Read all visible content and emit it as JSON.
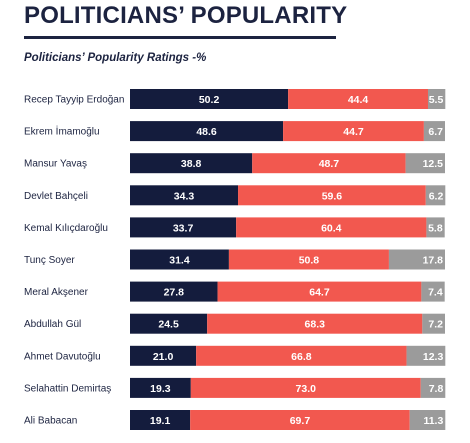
{
  "header": {
    "title": "POLITICIANS’ POPULARITY",
    "subtitle": "Politicians’ Popularity Ratings -%"
  },
  "colors": {
    "positive": "#141c3d",
    "negative": "#f2584f",
    "other": "#9b9b9b",
    "positive_text": "#ffffff",
    "negative_text": "#ffffff",
    "other_text": "#ffffff"
  },
  "chart_data": {
    "type": "bar",
    "orientation": "horizontal",
    "stacked": true,
    "title": "POLITICIANS’ POPULARITY",
    "subtitle": "Politicians’ Popularity Ratings -%",
    "xlim": [
      0,
      100
    ],
    "categories": [
      "Recep Tayyip Erdoğan",
      "Ekrem İmamoğlu",
      "Mansur Yavaş",
      "Devlet Bahçeli",
      "Kemal Kılıçdaroğlu",
      "Tunç Soyer",
      "Meral Akşener",
      "Abdullah Gül",
      "Ahmet Davutoğlu",
      "Selahattin Demirtaş",
      "Ali Babacan"
    ],
    "series": [
      {
        "values": [
          50.2,
          48.6,
          38.8,
          34.3,
          33.7,
          31.4,
          27.8,
          24.5,
          21.0,
          19.3,
          19.1
        ]
      },
      {
        "values": [
          44.4,
          44.7,
          48.7,
          59.6,
          60.4,
          50.8,
          64.7,
          68.3,
          66.8,
          73.0,
          69.7
        ]
      },
      {
        "values": [
          5.5,
          6.7,
          12.5,
          6.2,
          5.8,
          17.8,
          7.4,
          7.2,
          12.3,
          7.8,
          11.3
        ]
      }
    ]
  }
}
